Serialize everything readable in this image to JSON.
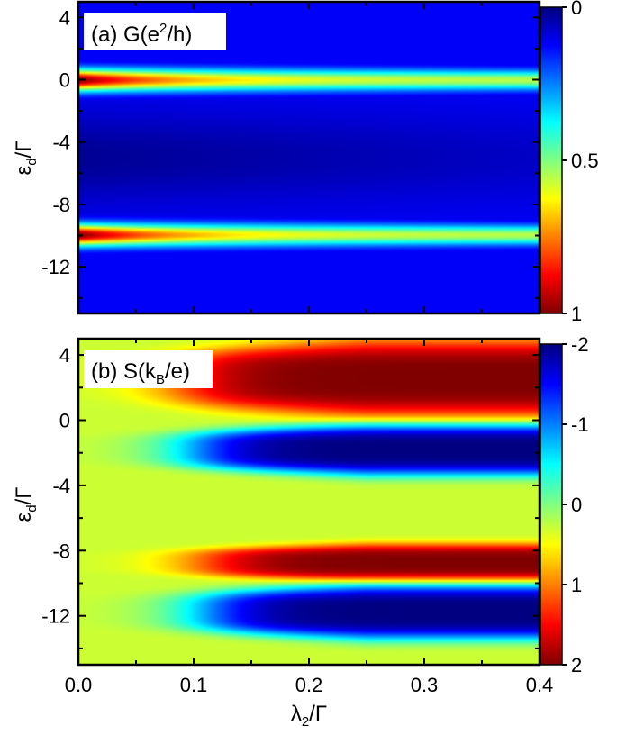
{
  "chart_data": [
    {
      "type": "heatmap",
      "panel_label": "(a) G(e",
      "panel_label_sup": "2",
      "panel_label_tail": "/h)",
      "xlim": [
        0.0,
        0.4
      ],
      "ylim": [
        -15,
        5
      ],
      "y_ticks": [
        4,
        0,
        -4,
        -8,
        -12
      ],
      "y_tick_labels": [
        "4",
        "0",
        "-4",
        "-8",
        "-12"
      ],
      "ylabel_main": "ε",
      "ylabel_sub": "d",
      "ylabel_tail": "/Γ",
      "colorbar": {
        "range": [
          0,
          1
        ],
        "ticks": [
          0,
          0.5,
          1
        ],
        "tick_labels": [
          "0",
          "0.5",
          "1"
        ],
        "top_value": 0,
        "bottom_value": 1,
        "colormap": "jet",
        "low_color": "#0000ff",
        "high_color": "#ff0000"
      },
      "features": [
        {
          "center_y": 0,
          "width_y": 0.6,
          "peak_value": 1.0,
          "decay_x": 0.09,
          "floor_value": 0.55
        },
        {
          "center_y": -10,
          "width_y": 0.6,
          "peak_value": 1.0,
          "decay_x": 0.09,
          "floor_value": 0.55
        }
      ],
      "background_value": 0.12,
      "valley": {
        "center_y": -5,
        "value": 0.02
      }
    },
    {
      "type": "heatmap",
      "panel_label": "(b) S(k",
      "panel_label_sub": "B",
      "panel_label_tail": "/e)",
      "xlim": [
        0.0,
        0.4
      ],
      "ylim": [
        -15,
        5
      ],
      "x_ticks": [
        0.0,
        0.1,
        0.2,
        0.3,
        0.4
      ],
      "x_tick_labels": [
        "0.0",
        "0.1",
        "0.2",
        "0.3",
        "0.4"
      ],
      "y_ticks": [
        4,
        0,
        -4,
        -8,
        -12
      ],
      "y_tick_labels": [
        "4",
        "0",
        "-4",
        "-8",
        "-12"
      ],
      "xlabel_main": "λ",
      "xlabel_sub": "2",
      "xlabel_tail": "/Γ",
      "ylabel_main": "ε",
      "ylabel_sub": "d",
      "ylabel_tail": "/Γ",
      "colorbar": {
        "range": [
          -2,
          2
        ],
        "ticks": [
          -2,
          -1,
          0,
          1,
          2
        ],
        "tick_labels": [
          "-2",
          "-1",
          "0",
          "1",
          "2"
        ],
        "top_value": -2,
        "bottom_value": 2,
        "colormap": "jet",
        "low_color": "#0000ff",
        "high_color": "#ff0000"
      },
      "lobes": [
        {
          "y_top": 5,
          "y_bottom": 0.2,
          "value": 2.0,
          "onset_x": 0.09
        },
        {
          "y_top": -0.2,
          "y_bottom": -3.4,
          "value": -2.0,
          "onset_x": 0.1
        },
        {
          "y_top": -7.6,
          "y_bottom": -9.9,
          "value": 2.0,
          "onset_x": 0.11
        },
        {
          "y_top": -10.1,
          "y_bottom": -13.5,
          "value": -2.0,
          "onset_x": 0.11
        }
      ],
      "background_value": 0.3
    }
  ]
}
